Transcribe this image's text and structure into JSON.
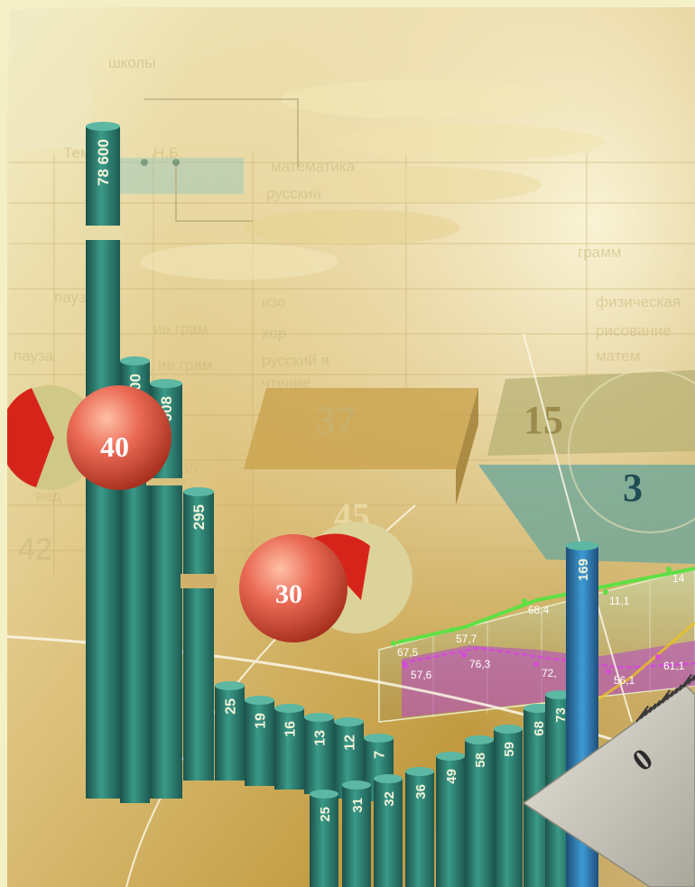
{
  "background_words": [
    "школы",
    "Тема",
    "Н.Б.",
    "математика",
    "русский",
    "изо",
    "хор",
    "пауза",
    "русский я",
    "чтение",
    "ие грам.",
    "вед",
    "35",
    "42",
    "пауза",
    "ие грам",
    "физическая",
    "рисование",
    "грамм",
    "матем"
  ],
  "spheres": [
    {
      "label": "40"
    },
    {
      "label": "30"
    }
  ],
  "slab_numbers": [
    "37",
    "45",
    "15",
    "3"
  ],
  "tall_bars": [
    "78 600",
    "23 000",
    "908",
    "295"
  ],
  "upper_steps": [
    "25",
    "19",
    "16",
    "13",
    "12",
    "7"
  ],
  "lower_steps": [
    "25",
    "31",
    "32",
    "36",
    "49",
    "58",
    "59",
    "68",
    "73",
    "169"
  ],
  "line_panel": {
    "upper": [
      "67,5",
      "57,7",
      "68,4",
      "11,1",
      "14"
    ],
    "lower": [
      "57,6",
      "76,3",
      "72,",
      "56,1",
      "61,1"
    ]
  },
  "ruler_mark": "0",
  "colors": {
    "background": "#f4f0c6",
    "bar": "#2f8375",
    "bar_dark": "#1f5d56",
    "sphere": "#e25a4a",
    "accent_blue": "#2c6e9c"
  }
}
